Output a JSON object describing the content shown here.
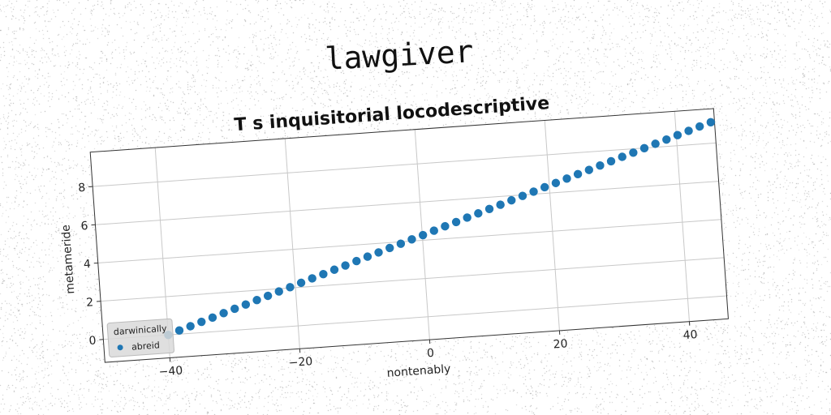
{
  "figure_title": "lawgiver",
  "colors": {
    "series": "#1f77b4",
    "grid": "#c8c8c8",
    "axes": "#333333"
  },
  "chart_data": {
    "type": "scatter",
    "title": "T s inquisitorial locodescriptive",
    "xlabel": "nontenably",
    "ylabel": "metameride",
    "xlim": [
      -50,
      46
    ],
    "ylim": [
      -1.2,
      9.8
    ],
    "xticks": [
      -40,
      -20,
      0,
      20,
      40
    ],
    "xtick_labels": [
      "−40",
      "−20",
      "0",
      "20",
      "40"
    ],
    "yticks": [
      0,
      2,
      4,
      6,
      8
    ],
    "ytick_labels": [
      "0",
      "2",
      "4",
      "6",
      "8"
    ],
    "grid": true,
    "legend": {
      "title": "darwinically",
      "position": "lower-left",
      "entries": [
        "abreid"
      ]
    },
    "series": [
      {
        "name": "abreid",
        "x": [
          -40.0,
          -38.26,
          -36.51,
          -34.77,
          -33.03,
          -31.28,
          -29.54,
          -27.8,
          -26.05,
          -24.31,
          -22.57,
          -20.82,
          -19.08,
          -17.34,
          -15.59,
          -13.85,
          -12.11,
          -10.36,
          -8.62,
          -6.88,
          -5.13,
          -3.39,
          -1.65,
          0.1,
          1.84,
          3.58,
          5.33,
          7.07,
          8.81,
          10.56,
          12.3,
          14.04,
          15.79,
          17.53,
          19.27,
          21.02,
          22.76,
          24.5,
          26.25,
          27.99,
          29.73,
          31.48,
          33.22,
          34.96,
          36.71,
          38.45,
          40.19,
          41.94,
          43.68,
          45.42
        ],
        "y": [
          0.0,
          0.19,
          0.37,
          0.56,
          0.74,
          0.93,
          1.12,
          1.3,
          1.49,
          1.67,
          1.86,
          2.04,
          2.23,
          2.42,
          2.6,
          2.79,
          2.97,
          3.16,
          3.35,
          3.53,
          3.72,
          3.9,
          4.09,
          4.27,
          4.46,
          4.65,
          4.83,
          5.02,
          5.2,
          5.39,
          5.57,
          5.76,
          5.95,
          6.13,
          6.32,
          6.5,
          6.69,
          6.88,
          7.06,
          7.25,
          7.43,
          7.62,
          7.8,
          7.99,
          8.18,
          8.36,
          8.55,
          8.73,
          8.92,
          9.1
        ]
      }
    ]
  }
}
